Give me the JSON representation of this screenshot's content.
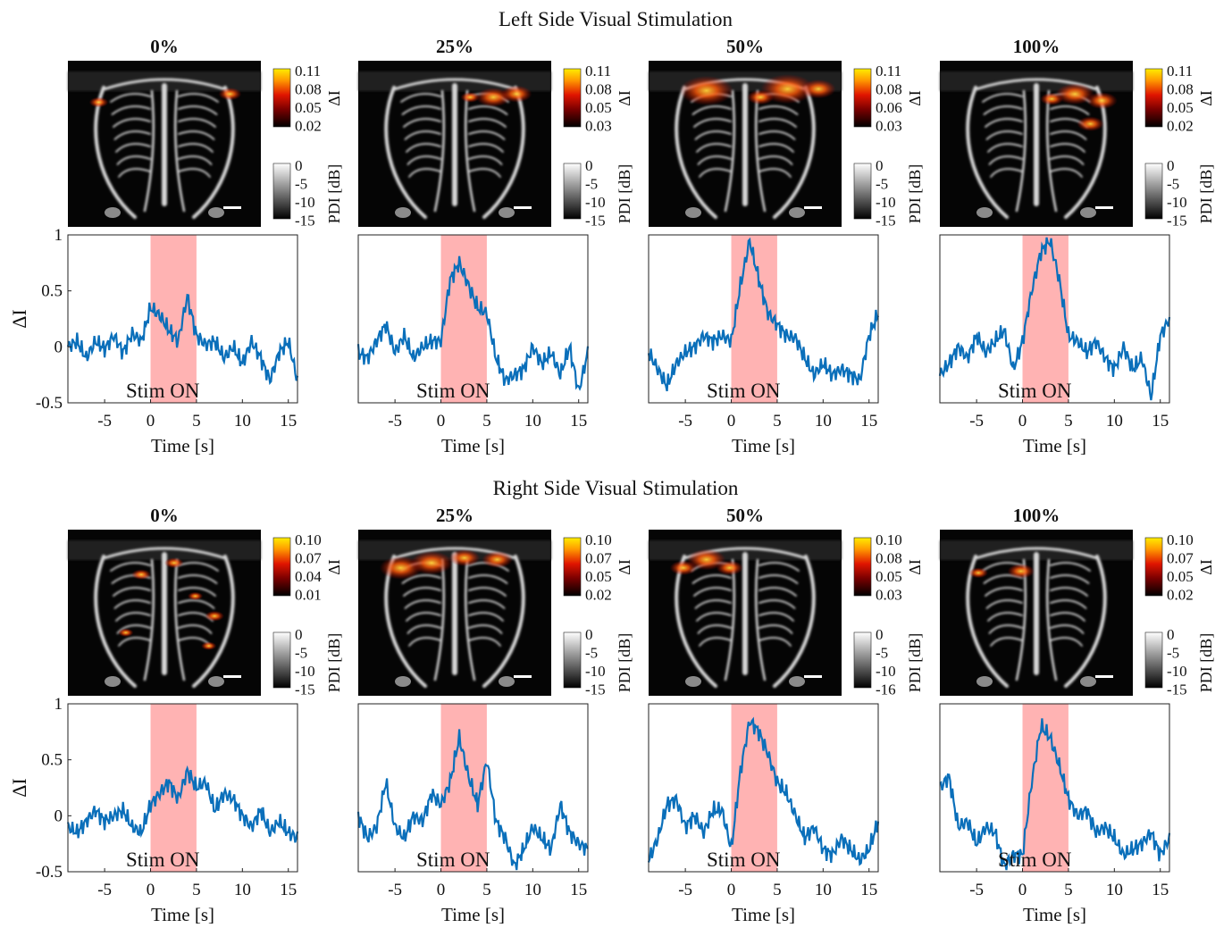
{
  "figure": {
    "sections": [
      {
        "title": "Left Side Visual Stimulation",
        "stim_label": "Stim ON",
        "panels": [
          {
            "level": "0%",
            "di_ticks": [
              "0.11",
              "0.08",
              "0.05",
              "0.02"
            ],
            "pdi_ticks": [
              "0",
              "-5",
              "-10",
              "-15"
            ],
            "hotspots": [
              [
                0.16,
                0.25,
                0.05
              ],
              [
                0.84,
                0.2,
                0.06
              ]
            ]
          },
          {
            "level": "25%",
            "di_ticks": [
              "0.11",
              "0.08",
              "0.05",
              "0.03"
            ],
            "pdi_ticks": [
              "0",
              "-5",
              "-10",
              "-15"
            ],
            "hotspots": [
              [
                0.58,
                0.22,
                0.05
              ],
              [
                0.7,
                0.22,
                0.09
              ],
              [
                0.82,
                0.2,
                0.08
              ]
            ]
          },
          {
            "level": "50%",
            "di_ticks": [
              "0.11",
              "0.08",
              "0.06",
              "0.03"
            ],
            "pdi_ticks": [
              "0",
              "-5",
              "-10",
              "-15"
            ],
            "hotspots": [
              [
                0.3,
                0.18,
                0.14
              ],
              [
                0.58,
                0.22,
                0.07
              ],
              [
                0.72,
                0.17,
                0.14
              ],
              [
                0.88,
                0.17,
                0.09
              ]
            ]
          },
          {
            "level": "100%",
            "di_ticks": [
              "0.11",
              "0.08",
              "0.05",
              "0.02"
            ],
            "pdi_ticks": [
              "0",
              "-5",
              "-10",
              "-15"
            ],
            "hotspots": [
              [
                0.58,
                0.23,
                0.06
              ],
              [
                0.7,
                0.2,
                0.1
              ],
              [
                0.84,
                0.24,
                0.08
              ],
              [
                0.78,
                0.38,
                0.07
              ]
            ]
          }
        ]
      },
      {
        "title": "Right Side Visual Stimulation",
        "stim_label": "Stim ON",
        "panels": [
          {
            "level": "0%",
            "di_ticks": [
              "0.10",
              "0.07",
              "0.04",
              "0.01"
            ],
            "pdi_ticks": [
              "0",
              "-5",
              "-10",
              "-15"
            ],
            "hotspots": [
              [
                0.38,
                0.27,
                0.05
              ],
              [
                0.55,
                0.2,
                0.05
              ],
              [
                0.66,
                0.4,
                0.04
              ],
              [
                0.76,
                0.52,
                0.05
              ],
              [
                0.3,
                0.62,
                0.04
              ],
              [
                0.73,
                0.7,
                0.04
              ]
            ]
          },
          {
            "level": "25%",
            "di_ticks": [
              "0.10",
              "0.07",
              "0.05",
              "0.02"
            ],
            "pdi_ticks": [
              "0",
              "-5",
              "-10",
              "-15"
            ],
            "hotspots": [
              [
                0.22,
                0.23,
                0.11
              ],
              [
                0.38,
                0.2,
                0.11
              ],
              [
                0.55,
                0.17,
                0.08
              ],
              [
                0.72,
                0.18,
                0.08
              ]
            ]
          },
          {
            "level": "50%",
            "di_ticks": [
              "0.10",
              "0.08",
              "0.05",
              "0.03"
            ],
            "pdi_ticks": [
              "0",
              "-5",
              "-10",
              "-16"
            ],
            "hotspots": [
              [
                0.18,
                0.23,
                0.07
              ],
              [
                0.42,
                0.23,
                0.07
              ],
              [
                0.3,
                0.18,
                0.1
              ]
            ]
          },
          {
            "level": "100%",
            "di_ticks": [
              "0.10",
              "0.07",
              "0.05",
              "0.02"
            ],
            "pdi_ticks": [
              "0",
              "-5",
              "-10",
              "-15"
            ],
            "hotspots": [
              [
                0.2,
                0.26,
                0.05
              ],
              [
                0.42,
                0.25,
                0.07
              ]
            ]
          }
        ]
      }
    ],
    "colorbar_labels": {
      "di": "ΔI",
      "pdi": "PDI [dB]"
    },
    "ylabel": "ΔI",
    "xlabel": "Time [s]",
    "colors": {
      "trace": "#0a6fba",
      "stim_window": "#ffb3b3"
    }
  },
  "chart_data": {
    "type": "line",
    "xlabel": "Time [s]",
    "ylabel": "ΔI",
    "xlim": [
      -9,
      16
    ],
    "ylim": [
      -0.5,
      1
    ],
    "xticks": [
      -5,
      0,
      5,
      10,
      15
    ],
    "yticks": [
      -0.5,
      0,
      0.5,
      1
    ],
    "stim_window": [
      0,
      5
    ],
    "x": [
      -9,
      -8,
      -7,
      -6,
      -5,
      -4,
      -3,
      -2,
      -1,
      0,
      1,
      2,
      3,
      4,
      5,
      6,
      7,
      8,
      9,
      10,
      11,
      12,
      13,
      14,
      15,
      16
    ],
    "panels": [
      {
        "section": "Left Side Visual Stimulation",
        "level": "0%",
        "values": [
          0.0,
          0.05,
          -0.1,
          0.05,
          -0.02,
          0.1,
          -0.05,
          0.12,
          0.05,
          0.35,
          0.28,
          0.15,
          0.05,
          0.45,
          0.1,
          0.02,
          0.05,
          -0.1,
          0.0,
          -0.15,
          0.05,
          -0.1,
          -0.3,
          -0.05,
          0.05,
          -0.3
        ]
      },
      {
        "section": "Left Side Visual Stimulation",
        "level": "25%",
        "values": [
          -0.05,
          -0.1,
          0.05,
          0.2,
          -0.05,
          0.1,
          -0.1,
          0.0,
          0.05,
          0.05,
          0.6,
          0.75,
          0.55,
          0.35,
          0.3,
          -0.1,
          -0.3,
          -0.25,
          -0.2,
          0.0,
          -0.15,
          -0.05,
          -0.25,
          0.0,
          -0.4,
          -0.05
        ]
      },
      {
        "section": "Left Side Visual Stimulation",
        "level": "50%",
        "values": [
          -0.05,
          -0.2,
          -0.35,
          -0.15,
          -0.05,
          0.0,
          0.1,
          0.05,
          0.1,
          0.05,
          0.55,
          0.95,
          0.6,
          0.3,
          0.2,
          0.1,
          0.08,
          -0.1,
          -0.25,
          -0.15,
          -0.25,
          -0.2,
          -0.25,
          -0.3,
          0.1,
          0.3
        ]
      },
      {
        "section": "Left Side Visual Stimulation",
        "level": "100%",
        "values": [
          -0.25,
          -0.15,
          0.0,
          -0.1,
          0.1,
          -0.05,
          0.05,
          0.15,
          -0.2,
          0.05,
          0.5,
          0.85,
          0.95,
          0.6,
          0.1,
          0.05,
          -0.05,
          0.05,
          -0.1,
          -0.2,
          0.0,
          -0.2,
          -0.1,
          -0.45,
          0.1,
          0.25
        ]
      },
      {
        "section": "Right Side Visual Stimulation",
        "level": "0%",
        "values": [
          -0.1,
          -0.15,
          -0.05,
          0.05,
          -0.05,
          0.0,
          0.05,
          -0.1,
          -0.15,
          0.1,
          0.2,
          0.3,
          0.15,
          0.4,
          0.25,
          0.3,
          0.05,
          0.2,
          0.15,
          0.0,
          -0.1,
          0.05,
          -0.15,
          -0.05,
          -0.15,
          -0.2
        ]
      },
      {
        "section": "Right Side Visual Stimulation",
        "level": "25%",
        "values": [
          0.0,
          -0.2,
          -0.1,
          0.3,
          -0.1,
          -0.2,
          0.0,
          -0.05,
          0.2,
          0.1,
          0.3,
          0.7,
          0.35,
          0.1,
          0.5,
          -0.05,
          -0.2,
          -0.45,
          -0.3,
          -0.1,
          -0.2,
          -0.3,
          0.1,
          -0.15,
          -0.25,
          -0.3
        ]
      },
      {
        "section": "Right Side Visual Stimulation",
        "level": "50%",
        "values": [
          -0.4,
          -0.2,
          0.1,
          0.15,
          -0.1,
          0.0,
          -0.15,
          0.05,
          0.05,
          -0.3,
          0.4,
          0.85,
          0.75,
          0.55,
          0.3,
          0.2,
          0.0,
          -0.2,
          -0.1,
          -0.3,
          -0.35,
          -0.2,
          -0.3,
          -0.4,
          -0.3,
          -0.05
        ]
      },
      {
        "section": "Right Side Visual Stimulation",
        "level": "100%",
        "values": [
          0.25,
          0.35,
          -0.1,
          -0.05,
          -0.25,
          -0.1,
          -0.15,
          -0.45,
          -0.35,
          -0.35,
          0.3,
          0.8,
          0.7,
          0.45,
          0.15,
          0.0,
          0.05,
          -0.15,
          -0.1,
          -0.2,
          -0.35,
          -0.3,
          -0.25,
          -0.15,
          -0.35,
          -0.2
        ]
      }
    ]
  }
}
